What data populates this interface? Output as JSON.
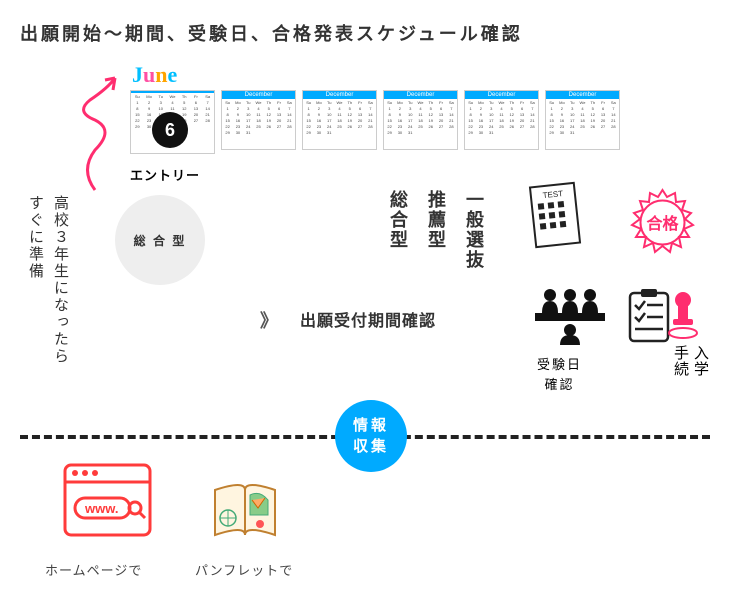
{
  "title": "出願開始～期間、受験日、合格発表スケジュール確認",
  "june": {
    "j": "J",
    "u": "u",
    "n": "n",
    "e": "e"
  },
  "calendar": {
    "first_header": "",
    "other_header": "December",
    "count": 5
  },
  "badge6": "6",
  "entry_label": "エントリー",
  "side1": "すぐに準備",
  "side2": "高校３年生になったら",
  "gray_circle": "総 合 型",
  "types": {
    "sogo": "総合型",
    "suisen": "推薦型",
    "ippan": "一般選抜"
  },
  "app_period": "出願受付期間確認",
  "chevron": "》",
  "pass_text": "合格",
  "info": {
    "l1": "情報",
    "l2": "収集"
  },
  "exam_label_l1": "受験日",
  "exam_label_l2": "確認",
  "proc_l1": "入学",
  "proc_l2": "手続",
  "homepage": "ホームページで",
  "pamphlet": "パンフレットで",
  "www": "www.",
  "test_label": "TEST",
  "colors": {
    "accent_blue": "#00aaff",
    "stamp_red": "#ff2d6f",
    "arrow_red": "#ff2d6f",
    "browser_red": "#ff3b3b",
    "dark": "#222"
  }
}
